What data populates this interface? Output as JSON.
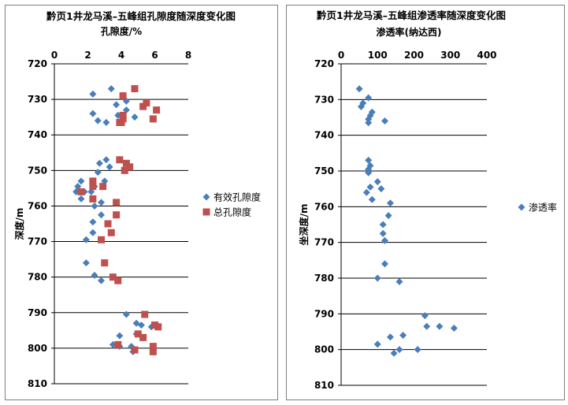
{
  "chart_data": [
    {
      "type": "scatter",
      "title": "黔页1井龙马溪–五峰组孔隙度随深度变化图",
      "xlabel": "孔隙度/%",
      "ylabel": "深度/m",
      "xlim": [
        0,
        8
      ],
      "ylim": [
        720,
        810
      ],
      "x_ticks": [
        "0",
        "2",
        "4",
        "6",
        "8"
      ],
      "y_ticks": [
        "720",
        "730",
        "740",
        "750",
        "760",
        "770",
        "780",
        "790",
        "800",
        "810"
      ],
      "x_axis_position": "top",
      "y_axis_reversed": true,
      "grid": "horizontal",
      "legend_position": "right",
      "series": [
        {
          "name": "有效孔隙度",
          "color": "#4a7ebb",
          "marker": "diamond",
          "points": [
            [
              3.4,
              727
            ],
            [
              2.3,
              728.5
            ],
            [
              4.3,
              730.5
            ],
            [
              3.7,
              731.5
            ],
            [
              4.3,
              733
            ],
            [
              2.3,
              734
            ],
            [
              3.8,
              734.5
            ],
            [
              2.6,
              736
            ],
            [
              4.8,
              735
            ],
            [
              3.1,
              736.5
            ],
            [
              3.1,
              747
            ],
            [
              2.7,
              748
            ],
            [
              3.3,
              749
            ],
            [
              2.6,
              750.5
            ],
            [
              1.6,
              753
            ],
            [
              3.0,
              753
            ],
            [
              1.4,
              754.5
            ],
            [
              2.4,
              754.5
            ],
            [
              1.3,
              756
            ],
            [
              1.8,
              756
            ],
            [
              2.2,
              756
            ],
            [
              1.6,
              758
            ],
            [
              2.8,
              759
            ],
            [
              2.4,
              760
            ],
            [
              2.3,
              764.5
            ],
            [
              2.8,
              762.5
            ],
            [
              2.3,
              767.5
            ],
            [
              1.9,
              769.5
            ],
            [
              1.9,
              776
            ],
            [
              2.4,
              779.5
            ],
            [
              2.8,
              781
            ],
            [
              4.3,
              790.5
            ],
            [
              4.9,
              793
            ],
            [
              5.2,
              793.5
            ],
            [
              5.8,
              794
            ],
            [
              4.9,
              796
            ],
            [
              3.9,
              796.5
            ],
            [
              3.5,
              799
            ],
            [
              3.9,
              799.5
            ],
            [
              4.6,
              799.5
            ],
            [
              4.7,
              801
            ]
          ]
        },
        {
          "name": "总孔隙度",
          "color": "#c0504d",
          "marker": "square",
          "points": [
            [
              4.8,
              727
            ],
            [
              4.1,
              729
            ],
            [
              5.5,
              731
            ],
            [
              5.3,
              732
            ],
            [
              6.1,
              733
            ],
            [
              4.1,
              734.5
            ],
            [
              4.1,
              735.5
            ],
            [
              5.9,
              735.5
            ],
            [
              3.9,
              736.5
            ],
            [
              4.0,
              736.5
            ],
            [
              3.9,
              747
            ],
            [
              4.3,
              748
            ],
            [
              4.5,
              749
            ],
            [
              4.2,
              750
            ],
            [
              2.3,
              753
            ],
            [
              2.3,
              754.5
            ],
            [
              2.9,
              754.5
            ],
            [
              1.6,
              756
            ],
            [
              2.3,
              758
            ],
            [
              3.7,
              759
            ],
            [
              3.7,
              762.5
            ],
            [
              3.2,
              765
            ],
            [
              3.4,
              767.5
            ],
            [
              2.8,
              769.5
            ],
            [
              3.0,
              776
            ],
            [
              3.5,
              780
            ],
            [
              3.8,
              781
            ],
            [
              5.4,
              790.5
            ],
            [
              6.0,
              793.5
            ],
            [
              6.2,
              794
            ],
            [
              5.0,
              796
            ],
            [
              5.3,
              797
            ],
            [
              3.8,
              799
            ],
            [
              5.9,
              799.5
            ],
            [
              4.8,
              800.5
            ],
            [
              5.9,
              801
            ]
          ]
        }
      ]
    },
    {
      "type": "scatter",
      "title": "黔页1井龙马溪–五峰组渗透率随深度变化图",
      "xlabel": "渗透率(纳达西)",
      "ylabel": "坐深度/m",
      "xlim": [
        0,
        400
      ],
      "ylim": [
        720,
        810
      ],
      "x_ticks": [
        "0",
        "100",
        "200",
        "300",
        "400"
      ],
      "y_ticks": [
        "720",
        "730",
        "740",
        "750",
        "760",
        "770",
        "780",
        "790",
        "800",
        "810"
      ],
      "x_axis_position": "top",
      "y_axis_reversed": true,
      "grid": "horizontal",
      "legend_position": "right",
      "series": [
        {
          "name": "渗透率",
          "color": "#4a7ebb",
          "marker": "diamond",
          "points": [
            [
              50,
              727
            ],
            [
              75,
              729.5
            ],
            [
              60,
              731
            ],
            [
              55,
              732
            ],
            [
              85,
              733.5
            ],
            [
              80,
              734.5
            ],
            [
              75,
              735.5
            ],
            [
              120,
              736
            ],
            [
              75,
              736.5
            ],
            [
              75,
              747
            ],
            [
              80,
              748.5
            ],
            [
              75,
              749.5
            ],
            [
              75,
              750.5
            ],
            [
              100,
              753
            ],
            [
              80,
              754.5
            ],
            [
              110,
              755
            ],
            [
              70,
              756
            ],
            [
              85,
              758
            ],
            [
              135,
              759
            ],
            [
              130,
              762.5
            ],
            [
              115,
              765
            ],
            [
              115,
              767.5
            ],
            [
              120,
              769.5
            ],
            [
              120,
              776
            ],
            [
              100,
              780
            ],
            [
              160,
              781
            ],
            [
              230,
              790.5
            ],
            [
              235,
              793.5
            ],
            [
              270,
              793.5
            ],
            [
              310,
              794
            ],
            [
              170,
              796
            ],
            [
              135,
              796.5
            ],
            [
              100,
              798.5
            ],
            [
              160,
              800
            ],
            [
              210,
              800
            ],
            [
              145,
              801
            ]
          ]
        }
      ]
    }
  ]
}
